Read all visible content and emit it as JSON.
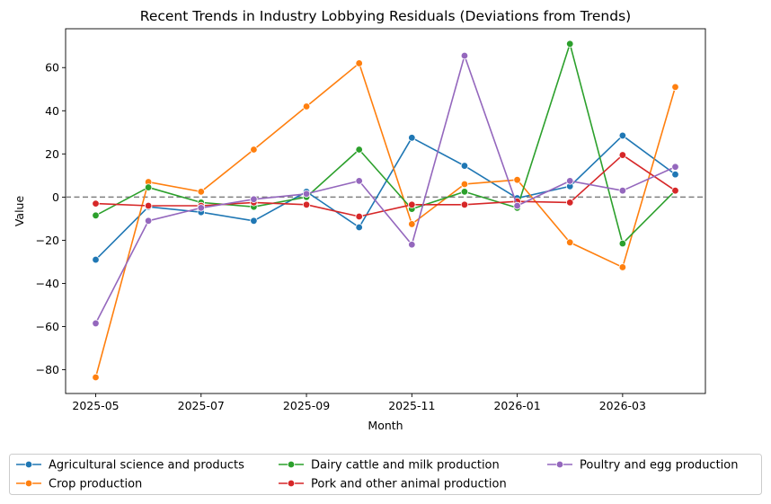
{
  "chart_data": {
    "type": "line",
    "title": "Recent Trends in Industry Lobbying Residuals (Deviations from Trends)",
    "xlabel": "Month",
    "ylabel": "Value",
    "x": [
      "2025-05",
      "2025-06",
      "2025-07",
      "2025-08",
      "2025-09",
      "2025-10",
      "2025-11",
      "2025-12",
      "2026-01",
      "2026-02",
      "2026-03",
      "2026-04"
    ],
    "x_ticks": [
      "2025-05",
      "2025-07",
      "2025-09",
      "2025-11",
      "2026-01",
      "2026-03"
    ],
    "y_ticks": [
      60,
      40,
      20,
      0,
      -20,
      -40,
      -60,
      -80
    ],
    "y_tick_labels": [
      "60",
      "40",
      "20",
      "0",
      "−20",
      "−40",
      "−60",
      "−80"
    ],
    "ylim": [
      -91,
      78
    ],
    "reference_line": 0,
    "grid": false,
    "legend_position": "below",
    "series": [
      {
        "name": "Agricultural science and products",
        "color": "#1f77b4",
        "values": [
          -29,
          -4.5,
          -7,
          -11,
          2.5,
          -14,
          27.5,
          14.5,
          -0.5,
          5,
          28.5,
          10.5
        ]
      },
      {
        "name": "Crop production",
        "color": "#ff7f0e",
        "values": [
          -83.5,
          7,
          2.5,
          22,
          42,
          62,
          -12.5,
          6,
          8,
          -21,
          -32.5,
          51
        ]
      },
      {
        "name": "Dairy cattle and milk production",
        "color": "#2ca02c",
        "values": [
          -8.5,
          4.5,
          -2.5,
          -4.5,
          0,
          22,
          -5.5,
          2.5,
          -5,
          71,
          -21.5,
          3
        ]
      },
      {
        "name": "Pork and other animal production",
        "color": "#d62728",
        "values": [
          -3,
          -4,
          -4,
          -2.5,
          -3.5,
          -9,
          -3.5,
          -3.5,
          -2,
          -2.5,
          19.5,
          3
        ]
      },
      {
        "name": "Poultry and egg production",
        "color": "#9467bd",
        "values": [
          -58.5,
          -11,
          -5,
          -1,
          1.5,
          7.5,
          -22,
          65.5,
          -4,
          7.5,
          3,
          14
        ]
      }
    ]
  }
}
